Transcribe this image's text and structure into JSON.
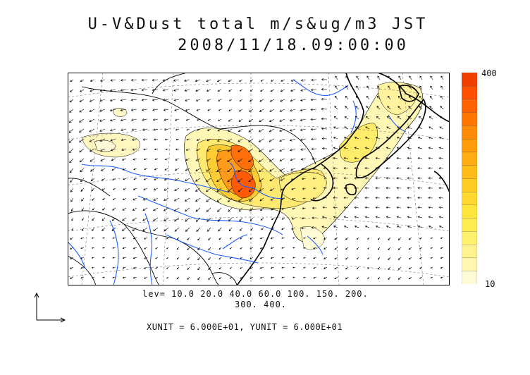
{
  "title": {
    "line1": "U-V&Dust total m/s&ug/m3 JST",
    "line2": "2008/11/18.09:00:00"
  },
  "levels": {
    "line1": "lev= 10.0 20.0 40.0 60.0 100. 150. 200.",
    "line2": "300. 400.",
    "values": [
      10,
      20,
      40,
      60,
      100,
      150,
      200,
      300,
      400
    ]
  },
  "units_text": "XUNIT = 6.000E+01, YUNIT = 6.000E+01",
  "colorbar": {
    "max_label": "400",
    "min_label": "10",
    "colors": [
      "#fffbd6",
      "#fff7b0",
      "#fff38f",
      "#fff06e",
      "#ffec52",
      "#ffe63d",
      "#ffd92e",
      "#ffcc22",
      "#ffbd18",
      "#ffad10",
      "#ff9c0a",
      "#ff8a06",
      "#ff7604",
      "#ff6202",
      "#ff5000",
      "#f04000"
    ]
  },
  "colors": {
    "coast": "#000000",
    "river": "#1f5fff",
    "grid": "#777777"
  }
}
